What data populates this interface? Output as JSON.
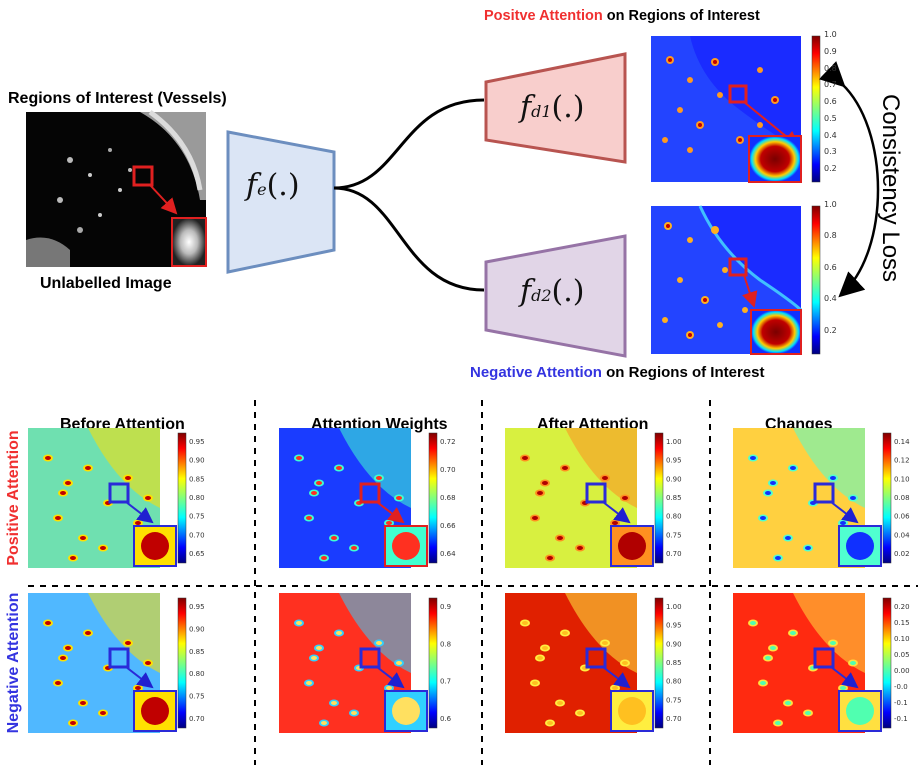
{
  "top": {
    "roi_title": "Regions of Interest (Vessels)",
    "unlabelled_caption": "Unlabelled Image",
    "encoder": {
      "fn": "f",
      "sub": "e",
      "args": "(.)"
    },
    "decoder1": {
      "fn": "f",
      "sub": "d1",
      "args": "(.)"
    },
    "decoder2": {
      "fn": "f",
      "sub": "d2",
      "args": "(.)"
    },
    "pos_caption_colored": "Positve Attention",
    "pos_caption_rest": " on Regions of Interest",
    "neg_caption_colored": "Negative Attention",
    "neg_caption_rest": " on Regions of Interest",
    "consistency_label": "Consistency Loss",
    "colorbar1_ticks": [
      "1.0",
      "0.9",
      "0.8",
      "0.7",
      "0.6",
      "0.5",
      "0.4",
      "0.3",
      "0.2"
    ],
    "colorbar2_ticks": [
      "1.0",
      "0.8",
      "0.6",
      "0.4",
      "0.2"
    ]
  },
  "bottom": {
    "columns": [
      "Before Attention",
      "Attention Weights",
      "After Attention",
      "Changes"
    ],
    "row_labels": [
      "Positive Attention",
      "Negative Attention"
    ],
    "ticks": {
      "pos_before": [
        "0.95",
        "0.90",
        "0.85",
        "0.80",
        "0.75",
        "0.70",
        "0.65"
      ],
      "pos_weights": [
        "0.72",
        "0.70",
        "0.68",
        "0.66",
        "0.64"
      ],
      "pos_after": [
        "1.00",
        "0.95",
        "0.90",
        "0.85",
        "0.80",
        "0.75",
        "0.70"
      ],
      "pos_changes": [
        "0.14",
        "0.12",
        "0.10",
        "0.08",
        "0.06",
        "0.04",
        "0.02"
      ],
      "neg_before": [
        "0.95",
        "0.90",
        "0.85",
        "0.80",
        "0.75",
        "0.70"
      ],
      "neg_weights": [
        "0.9",
        "0.8",
        "0.7",
        "0.6"
      ],
      "neg_after": [
        "1.00",
        "0.95",
        "0.90",
        "0.85",
        "0.80",
        "0.75",
        "0.70"
      ],
      "neg_changes": [
        "0.20",
        "0.15",
        "0.10",
        "0.05",
        "0.00",
        "-0.0",
        "-0.1",
        "-0.1"
      ]
    }
  },
  "colors": {
    "red_accent": "#f03030",
    "blue_accent": "#3434e0",
    "encoder_fill": "#dbe5f5",
    "encoder_stroke": "#6c8ebf",
    "dec1_fill": "#f8cecc",
    "dec1_stroke": "#b85450",
    "dec2_fill": "#e1d5e7",
    "dec2_stroke": "#9673a6"
  }
}
